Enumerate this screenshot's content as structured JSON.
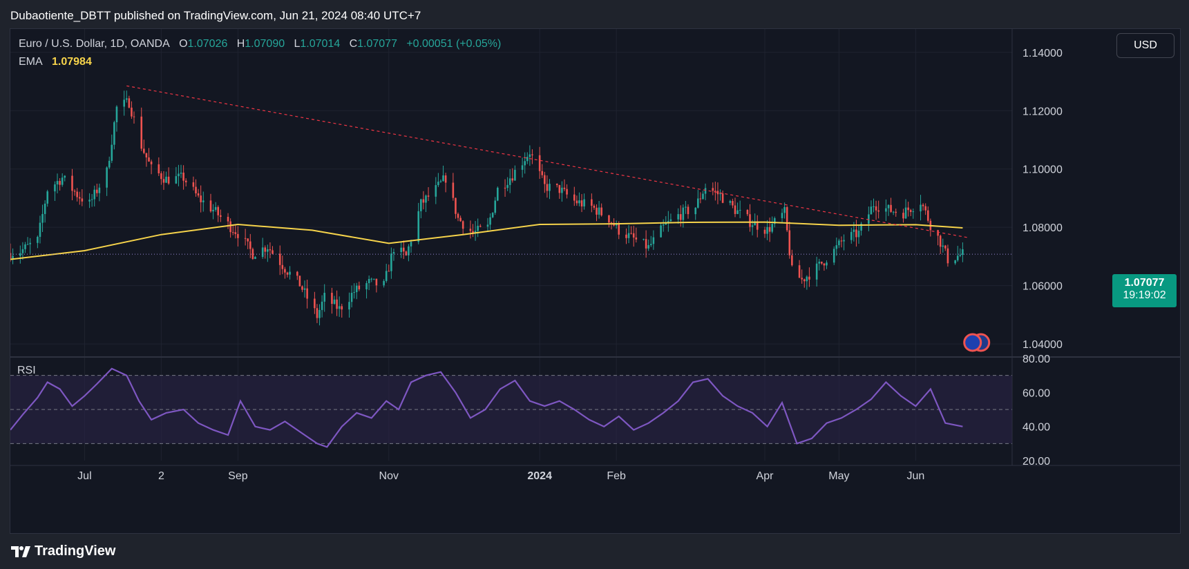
{
  "header": {
    "title": "Dubaotiente_DBTT published on TradingView.com, Jun 21, 2024 08:40 UTC+7"
  },
  "legend": {
    "symbol": "Euro / U.S. Dollar, 1D, OANDA",
    "o_label": "O",
    "o_value": "1.07026",
    "h_label": "H",
    "h_value": "1.07090",
    "l_label": "L",
    "l_value": "1.07014",
    "c_label": "C",
    "c_value": "1.07077",
    "change": "+0.00051 (+0.05%)",
    "ema_label": "EMA",
    "ema_value": "1.07984"
  },
  "currency_button": "USD",
  "price_badge": {
    "price": "1.07077",
    "countdown": "19:19:02"
  },
  "footer": {
    "brand": "TradingView"
  },
  "colors": {
    "up": "#26a69a",
    "down": "#ef5350",
    "ema": "#f7d44b",
    "rsi": "#7e57c2",
    "trendline": "#f23645",
    "background": "#131722"
  },
  "chart_data": [
    {
      "type": "candlestick",
      "title": "Euro / U.S. Dollar, 1D, OANDA",
      "ylim": [
        1.036,
        1.148
      ],
      "y_ticks": [
        "1.14000",
        "1.12000",
        "1.10000",
        "1.08000",
        "1.06000",
        "1.04000"
      ],
      "x_ticks": [
        "Jul",
        "2",
        "Sep",
        "Nov",
        "2024",
        "Feb",
        "Apr",
        "May",
        "Jun"
      ],
      "x_range": [
        "2023-06-01",
        "2024-07-10"
      ],
      "current_price": 1.07077,
      "close_series": {
        "dates": [
          "2023-06-01",
          "2023-06-05",
          "2023-06-12",
          "2023-06-16",
          "2023-06-22",
          "2023-06-28",
          "2023-07-03",
          "2023-07-10",
          "2023-07-14",
          "2023-07-19",
          "2023-07-24",
          "2023-07-28",
          "2023-08-03",
          "2023-08-10",
          "2023-08-16",
          "2023-08-22",
          "2023-08-28",
          "2023-09-01",
          "2023-09-07",
          "2023-09-13",
          "2023-09-20",
          "2023-09-26",
          "2023-10-03",
          "2023-10-06",
          "2023-10-12",
          "2023-10-18",
          "2023-10-24",
          "2023-10-30",
          "2023-11-03",
          "2023-11-08",
          "2023-11-14",
          "2023-11-20",
          "2023-11-24",
          "2023-11-29",
          "2023-12-05",
          "2023-12-11",
          "2023-12-15",
          "2023-12-21",
          "2023-12-28",
          "2024-01-03",
          "2024-01-09",
          "2024-01-15",
          "2024-01-22",
          "2024-01-29",
          "2024-02-02",
          "2024-02-08",
          "2024-02-14",
          "2024-02-20",
          "2024-02-26",
          "2024-03-04",
          "2024-03-08",
          "2024-03-14",
          "2024-03-20",
          "2024-03-26",
          "2024-04-02",
          "2024-04-09",
          "2024-04-12",
          "2024-04-16",
          "2024-04-22",
          "2024-04-29",
          "2024-05-03",
          "2024-05-09",
          "2024-05-15",
          "2024-05-21",
          "2024-05-27",
          "2024-06-03",
          "2024-06-07",
          "2024-06-11",
          "2024-06-14",
          "2024-06-20"
        ],
        "values": [
          1.0712,
          1.0718,
          1.0755,
          1.093,
          1.097,
          1.0912,
          1.088,
          1.099,
          1.121,
          1.123,
          1.108,
          1.1,
          1.0965,
          1.097,
          1.09,
          1.086,
          1.081,
          1.078,
          1.071,
          1.0735,
          1.066,
          1.0605,
          1.0495,
          1.056,
          1.052,
          1.058,
          1.061,
          1.06,
          1.073,
          1.07,
          1.088,
          1.093,
          1.097,
          1.083,
          1.078,
          1.08,
          1.093,
          1.098,
          1.106,
          1.094,
          1.093,
          1.089,
          1.087,
          1.083,
          1.079,
          1.076,
          1.073,
          1.08,
          1.084,
          1.087,
          1.094,
          1.091,
          1.086,
          1.082,
          1.079,
          1.085,
          1.065,
          1.062,
          1.066,
          1.072,
          1.076,
          1.078,
          1.088,
          1.086,
          1.085,
          1.089,
          1.081,
          1.075,
          1.069,
          1.0708
        ]
      },
      "ema": {
        "dates": [
          "2023-06-01",
          "2023-07-01",
          "2023-08-01",
          "2023-09-01",
          "2023-10-01",
          "2023-11-01",
          "2023-12-01",
          "2024-01-01",
          "2024-02-01",
          "2024-03-01",
          "2024-04-01",
          "2024-05-01",
          "2024-06-01",
          "2024-06-20"
        ],
        "values": [
          1.069,
          1.072,
          1.0775,
          1.081,
          1.079,
          1.0745,
          1.0775,
          1.081,
          1.0812,
          1.0817,
          1.0818,
          1.0807,
          1.0809,
          1.0798
        ]
      },
      "trendline": {
        "from": [
          "2023-07-18",
          1.1285
        ],
        "to": [
          "2024-06-22",
          1.0765
        ]
      },
      "horizontal_line": 1.07077
    },
    {
      "type": "line",
      "title": "RSI",
      "ylim": [
        20,
        80
      ],
      "y_ticks": [
        "80.00",
        "60.00",
        "40.00",
        "20.00"
      ],
      "bands": [
        30,
        50,
        70
      ],
      "series": [
        {
          "dates": [
            "2023-06-01",
            "2023-06-06",
            "2023-06-12",
            "2023-06-16",
            "2023-06-21",
            "2023-06-26",
            "2023-07-01",
            "2023-07-06",
            "2023-07-12",
            "2023-07-18",
            "2023-07-23",
            "2023-07-28",
            "2023-08-03",
            "2023-08-10",
            "2023-08-16",
            "2023-08-22",
            "2023-08-28",
            "2023-09-02",
            "2023-09-08",
            "2023-09-14",
            "2023-09-20",
            "2023-09-26",
            "2023-10-03",
            "2023-10-07",
            "2023-10-13",
            "2023-10-19",
            "2023-10-25",
            "2023-10-31",
            "2023-11-05",
            "2023-11-10",
            "2023-11-16",
            "2023-11-22",
            "2023-11-28",
            "2023-12-04",
            "2023-12-10",
            "2023-12-16",
            "2023-12-22",
            "2023-12-28",
            "2024-01-03",
            "2024-01-09",
            "2024-01-15",
            "2024-01-21",
            "2024-01-27",
            "2024-02-02",
            "2024-02-08",
            "2024-02-14",
            "2024-02-20",
            "2024-02-26",
            "2024-03-03",
            "2024-03-09",
            "2024-03-15",
            "2024-03-21",
            "2024-03-27",
            "2024-04-02",
            "2024-04-08",
            "2024-04-14",
            "2024-04-20",
            "2024-04-26",
            "2024-05-02",
            "2024-05-08",
            "2024-05-14",
            "2024-05-20",
            "2024-05-26",
            "2024-06-01",
            "2024-06-07",
            "2024-06-13",
            "2024-06-20"
          ],
          "values": [
            38,
            47,
            57,
            66,
            62,
            52,
            58,
            65,
            74,
            70,
            55,
            44,
            48,
            50,
            42,
            38,
            35,
            55,
            40,
            38,
            43,
            37,
            30,
            28,
            40,
            48,
            45,
            55,
            50,
            66,
            70,
            72,
            60,
            45,
            50,
            62,
            67,
            55,
            52,
            55,
            50,
            44,
            40,
            46,
            38,
            42,
            48,
            55,
            66,
            68,
            58,
            52,
            48,
            40,
            54,
            30,
            33,
            42,
            45,
            50,
            56,
            66,
            58,
            52,
            62,
            42,
            40
          ]
        }
      ]
    }
  ]
}
